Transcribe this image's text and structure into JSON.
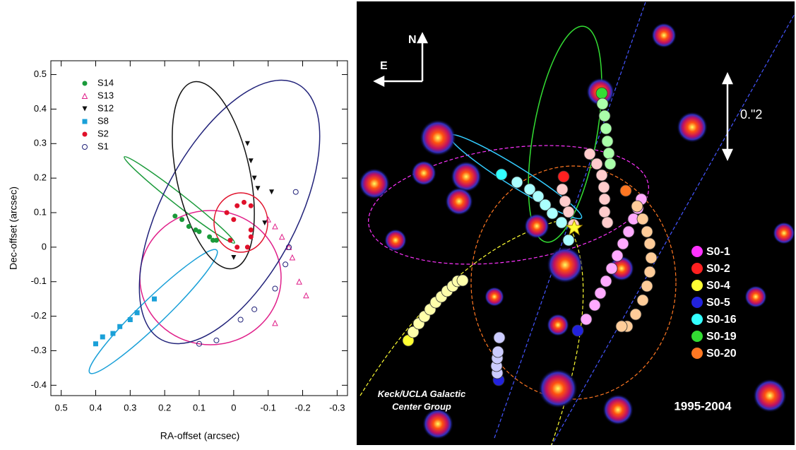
{
  "chart_data": [
    {
      "type": "scatter",
      "xlabel": "RA-offset (arcsec)",
      "ylabel": "Dec-offset (arcsec)",
      "xlim": [
        0.53,
        -0.33
      ],
      "ylim": [
        -0.43,
        0.54
      ],
      "xticks": [
        0.5,
        0.4,
        0.3,
        0.2,
        0.1,
        0,
        -0.1,
        -0.2,
        -0.3
      ],
      "yticks": [
        -0.4,
        -0.3,
        -0.2,
        -0.1,
        0,
        0.1,
        0.2,
        0.3,
        0.4,
        0.5
      ],
      "series": [
        {
          "name": "S14",
          "color": "#1a9a3a",
          "marker": "circle",
          "x": [
            0.17,
            0.15,
            0.13,
            0.11,
            0.1,
            0.07,
            0.06,
            0.05
          ],
          "y": [
            0.09,
            0.08,
            0.06,
            0.05,
            0.045,
            0.03,
            0.02,
            0.02
          ]
        },
        {
          "name": "S13",
          "color": "#e0208a",
          "marker": "triangle-open",
          "x": [
            -0.1,
            -0.12,
            -0.14,
            -0.16,
            -0.17,
            -0.19,
            -0.21,
            -0.12
          ],
          "y": [
            0.08,
            0.06,
            0.03,
            0.0,
            -0.03,
            -0.1,
            -0.14,
            -0.22
          ]
        },
        {
          "name": "S12",
          "color": "#111111",
          "marker": "triangle-down",
          "x": [
            -0.04,
            -0.05,
            -0.06,
            -0.07,
            -0.11,
            -0.09,
            0.0
          ],
          "y": [
            0.3,
            0.25,
            0.2,
            0.17,
            0.16,
            0.07,
            -0.03
          ]
        },
        {
          "name": "S8",
          "color": "#1aa0d8",
          "marker": "square",
          "x": [
            0.23,
            0.28,
            0.3,
            0.33,
            0.35,
            0.38,
            0.4
          ],
          "y": [
            -0.15,
            -0.19,
            -0.21,
            -0.23,
            -0.25,
            -0.26,
            -0.28
          ]
        },
        {
          "name": "S2",
          "color": "#e0102a",
          "marker": "circle",
          "x": [
            0.02,
            -0.01,
            -0.03,
            -0.05,
            0.0,
            0.01,
            -0.01,
            -0.04,
            -0.05,
            -0.05
          ],
          "y": [
            0.1,
            0.12,
            0.13,
            0.12,
            0.08,
            0.02,
            0.0,
            0.0,
            0.05,
            0.03
          ]
        },
        {
          "name": "S1",
          "color": "#22237a",
          "marker": "circle-open",
          "x": [
            -0.18,
            -0.16,
            -0.15,
            -0.12,
            -0.06,
            -0.02,
            0.05,
            0.1
          ],
          "y": [
            0.16,
            0.0,
            -0.05,
            -0.12,
            -0.18,
            -0.21,
            -0.27,
            -0.28
          ]
        }
      ]
    }
  ],
  "image_panel": {
    "north": "N",
    "east": "E",
    "scale": "0.\"2",
    "credit": "Keck/UCLA Galactic Center Group",
    "years": "1995-2004",
    "legend": [
      {
        "name": "S0-1",
        "color": "#ff33ff"
      },
      {
        "name": "S0-2",
        "color": "#ff2020"
      },
      {
        "name": "S0-4",
        "color": "#ffff33"
      },
      {
        "name": "S0-5",
        "color": "#2222dd"
      },
      {
        "name": "S0-16",
        "color": "#33ffff"
      },
      {
        "name": "S0-19",
        "color": "#33dd33"
      },
      {
        "name": "S0-20",
        "color": "#ff7722"
      }
    ]
  }
}
